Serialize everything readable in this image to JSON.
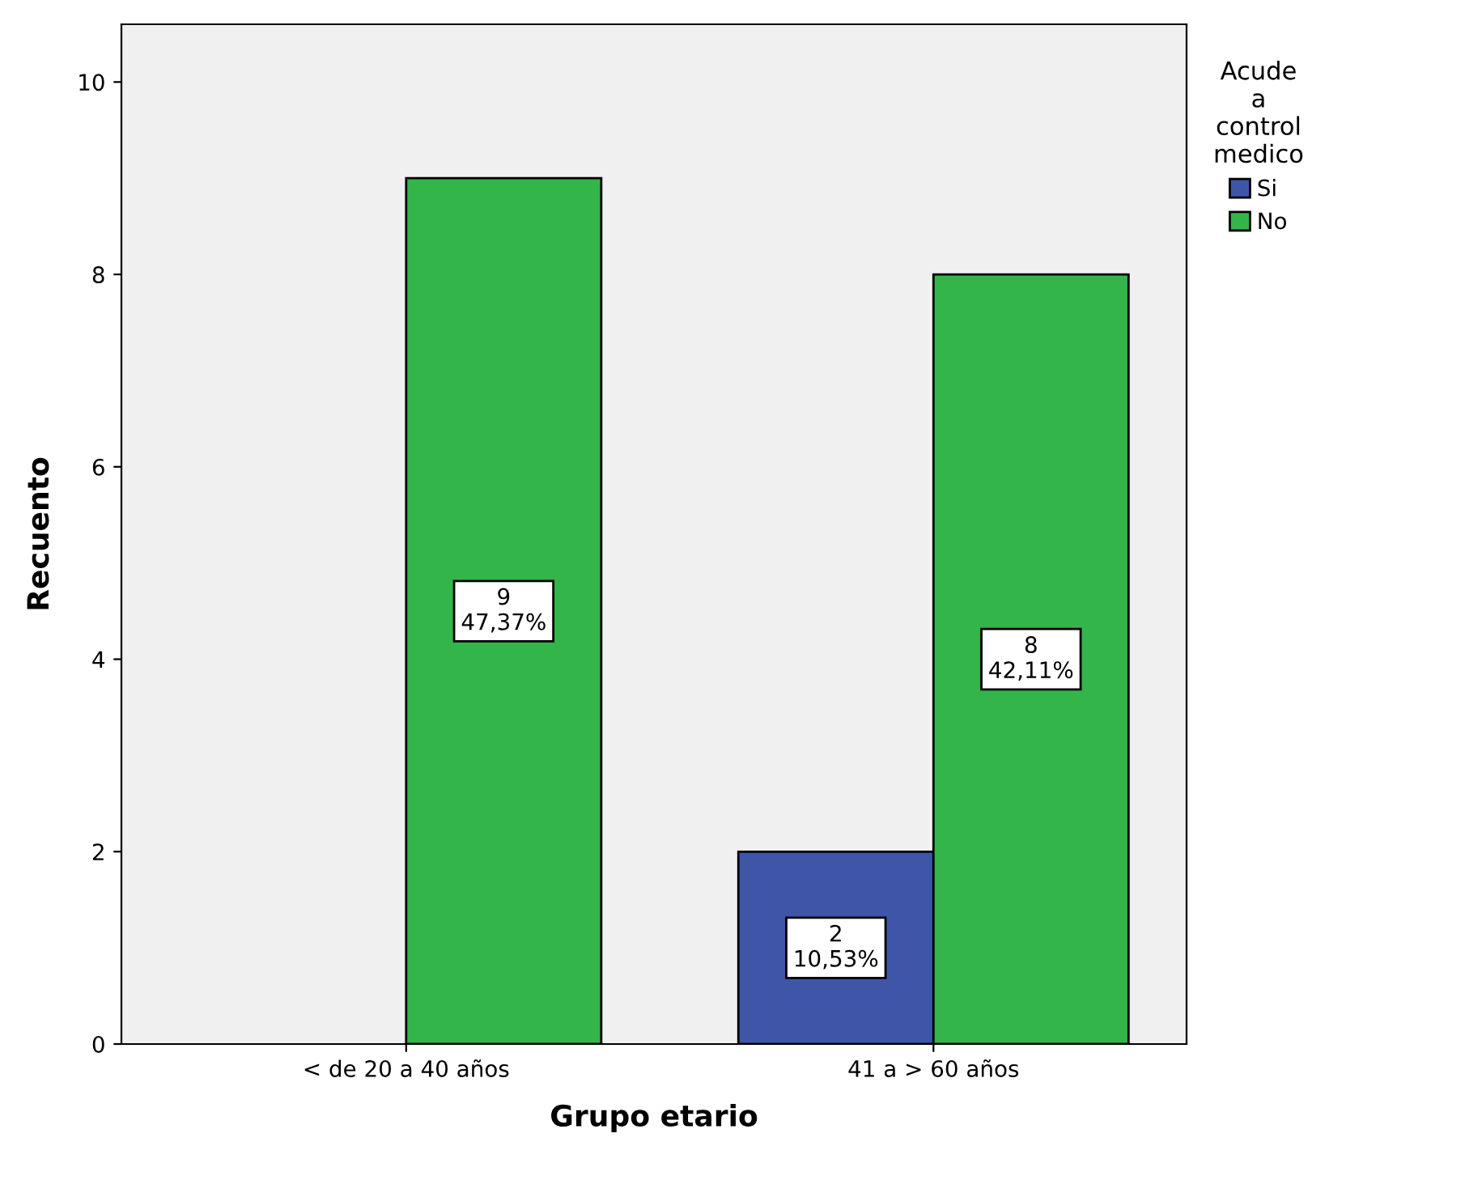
{
  "chart_data": {
    "type": "bar",
    "xlabel": "Grupo etario",
    "ylabel": "Recuento",
    "legend_title": "Acude\na\ncontrol\nmedico",
    "categories": [
      "< de 20 a 40 años",
      "41 a > 60 años"
    ],
    "series": [
      {
        "name": "Si",
        "color": "#3f56a8",
        "values": [
          null,
          2
        ],
        "value_labels": [
          null,
          "2\n10,53%"
        ]
      },
      {
        "name": "No",
        "color": "#33b54a",
        "values": [
          9,
          8
        ],
        "value_labels": [
          "9\n47,37%",
          "8\n42,11%"
        ]
      }
    ],
    "ylim": [
      0,
      10.6
    ],
    "yticks": [
      0,
      2,
      4,
      6,
      8,
      10
    ],
    "grid": false,
    "legend": "top right"
  }
}
